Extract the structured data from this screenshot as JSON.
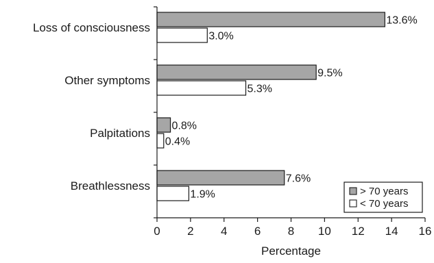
{
  "chart_data": {
    "type": "bar",
    "orientation": "horizontal",
    "title": "",
    "xlabel": "Percentage",
    "ylabel": "",
    "xlim": [
      0,
      16
    ],
    "xticks": [
      0,
      2,
      4,
      6,
      8,
      10,
      12,
      14,
      16
    ],
    "grid": false,
    "categories": [
      "Loss of consciousness",
      "Other symptoms",
      "Palpitations",
      "Breathlessness"
    ],
    "series": [
      {
        "name": "> 70 years",
        "color": "#a6a6a6",
        "values": [
          13.6,
          9.5,
          0.8,
          7.6
        ],
        "labels": [
          "13.6%",
          "9.5%",
          "0.8%",
          "7.6%"
        ]
      },
      {
        "name": "< 70 years",
        "color": "#ffffff",
        "values": [
          3.0,
          5.3,
          0.4,
          1.9
        ],
        "labels": [
          "3.0%",
          "5.3%",
          "0.4%",
          "1.9%"
        ]
      }
    ],
    "legend": {
      "position": "bottom-right",
      "entries": [
        "> 70 years",
        "< 70 years"
      ]
    }
  }
}
